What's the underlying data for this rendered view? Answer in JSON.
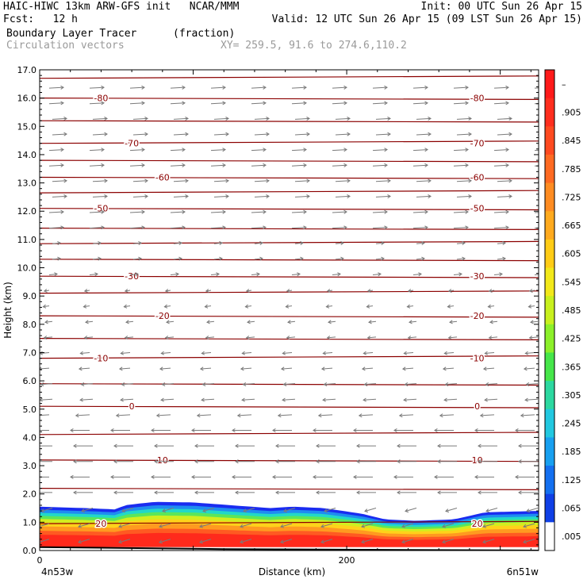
{
  "header": {
    "line1_left": "HAIC-HIWC 13km ARW-GFS init   NCAR/MMM",
    "line1_right": "Init: 00 UTC Sun 26 Apr 15",
    "line2_left": "Fcst:   12 h",
    "line2_right": "Valid: 12 UTC Sun 26 Apr 15 (09 LST Sun 26 Apr 15)",
    "field1_name": "Boundary Layer Tracer",
    "field1_units": "(fraction)",
    "field2_name": "Circulation vectors",
    "xy_text": "XY= 259.5, 91.6 to 274.6,110.2"
  },
  "chart_data": {
    "type": "heatmap",
    "ylabel": "Height (km)",
    "xlabel": "Distance (km)",
    "ylim": [
      0,
      17
    ],
    "yticks": [
      "0.0",
      "1.0",
      "2.0",
      "3.0",
      "4.0",
      "5.0",
      "6.0",
      "7.0",
      "8.0",
      "9.0",
      "10.0",
      "11.0",
      "12.0",
      "13.0",
      "14.0",
      "15.0",
      "16.0",
      "17.0"
    ],
    "xlim": [
      0,
      325
    ],
    "xticks": [
      {
        "value": 0,
        "label": "0"
      },
      {
        "value": 200,
        "label": "200"
      }
    ],
    "x_endpoint_labels": {
      "left": "4n53w",
      "right": "6n51w"
    },
    "tracer_top_km": [
      {
        "x": 0,
        "top": 1.55
      },
      {
        "x": 30,
        "top": 1.5
      },
      {
        "x": 50,
        "top": 1.45
      },
      {
        "x": 55,
        "top": 1.6
      },
      {
        "x": 75,
        "top": 1.72
      },
      {
        "x": 100,
        "top": 1.7
      },
      {
        "x": 125,
        "top": 1.6
      },
      {
        "x": 150,
        "top": 1.5
      },
      {
        "x": 165,
        "top": 1.55
      },
      {
        "x": 185,
        "top": 1.5
      },
      {
        "x": 210,
        "top": 1.3
      },
      {
        "x": 225,
        "top": 1.1
      },
      {
        "x": 245,
        "top": 1.05
      },
      {
        "x": 270,
        "top": 1.1
      },
      {
        "x": 290,
        "top": 1.35
      },
      {
        "x": 325,
        "top": 1.4
      }
    ],
    "contour_lines": {
      "label_units": "temperature",
      "labeled": [
        {
          "label": "-80",
          "height_km": 16.0
        },
        {
          "label": "-70",
          "height_km": 14.4
        },
        {
          "label": "-60",
          "height_km": 13.2
        },
        {
          "label": "-50",
          "height_km": 12.1
        },
        {
          "label": "-30",
          "height_km": 9.7
        },
        {
          "label": "-20",
          "height_km": 8.3
        },
        {
          "label": "-10",
          "height_km": 6.8
        },
        {
          "label": "0",
          "height_km": 5.1
        },
        {
          "label": "10",
          "height_km": 3.2
        },
        {
          "label": "20",
          "height_km": 0.95
        }
      ]
    },
    "colorbar": {
      "labels": [
        "–",
        ".905",
        ".845",
        ".785",
        ".725",
        ".665",
        ".605",
        ".545",
        ".485",
        ".425",
        ".365",
        ".305",
        ".245",
        ".185",
        ".125",
        ".065",
        ".005"
      ],
      "colors": [
        "#ff1a1a",
        "#ff2e1e",
        "#ff4a20",
        "#ff6a22",
        "#ff8c22",
        "#ffaa1e",
        "#ffcc16",
        "#f2e81a",
        "#c8f01e",
        "#8cf02a",
        "#46e64a",
        "#2cd8a0",
        "#22c8e0",
        "#18a0f0",
        "#1470f0",
        "#1040e6",
        "#ffffff"
      ]
    },
    "vectors": {
      "upper_direction": "east",
      "middle_direction": "west",
      "lower_direction": "southwest"
    },
    "colors": {
      "contour": "#8b0000",
      "vector": "#7a7a7a",
      "axis": "#000000"
    }
  }
}
